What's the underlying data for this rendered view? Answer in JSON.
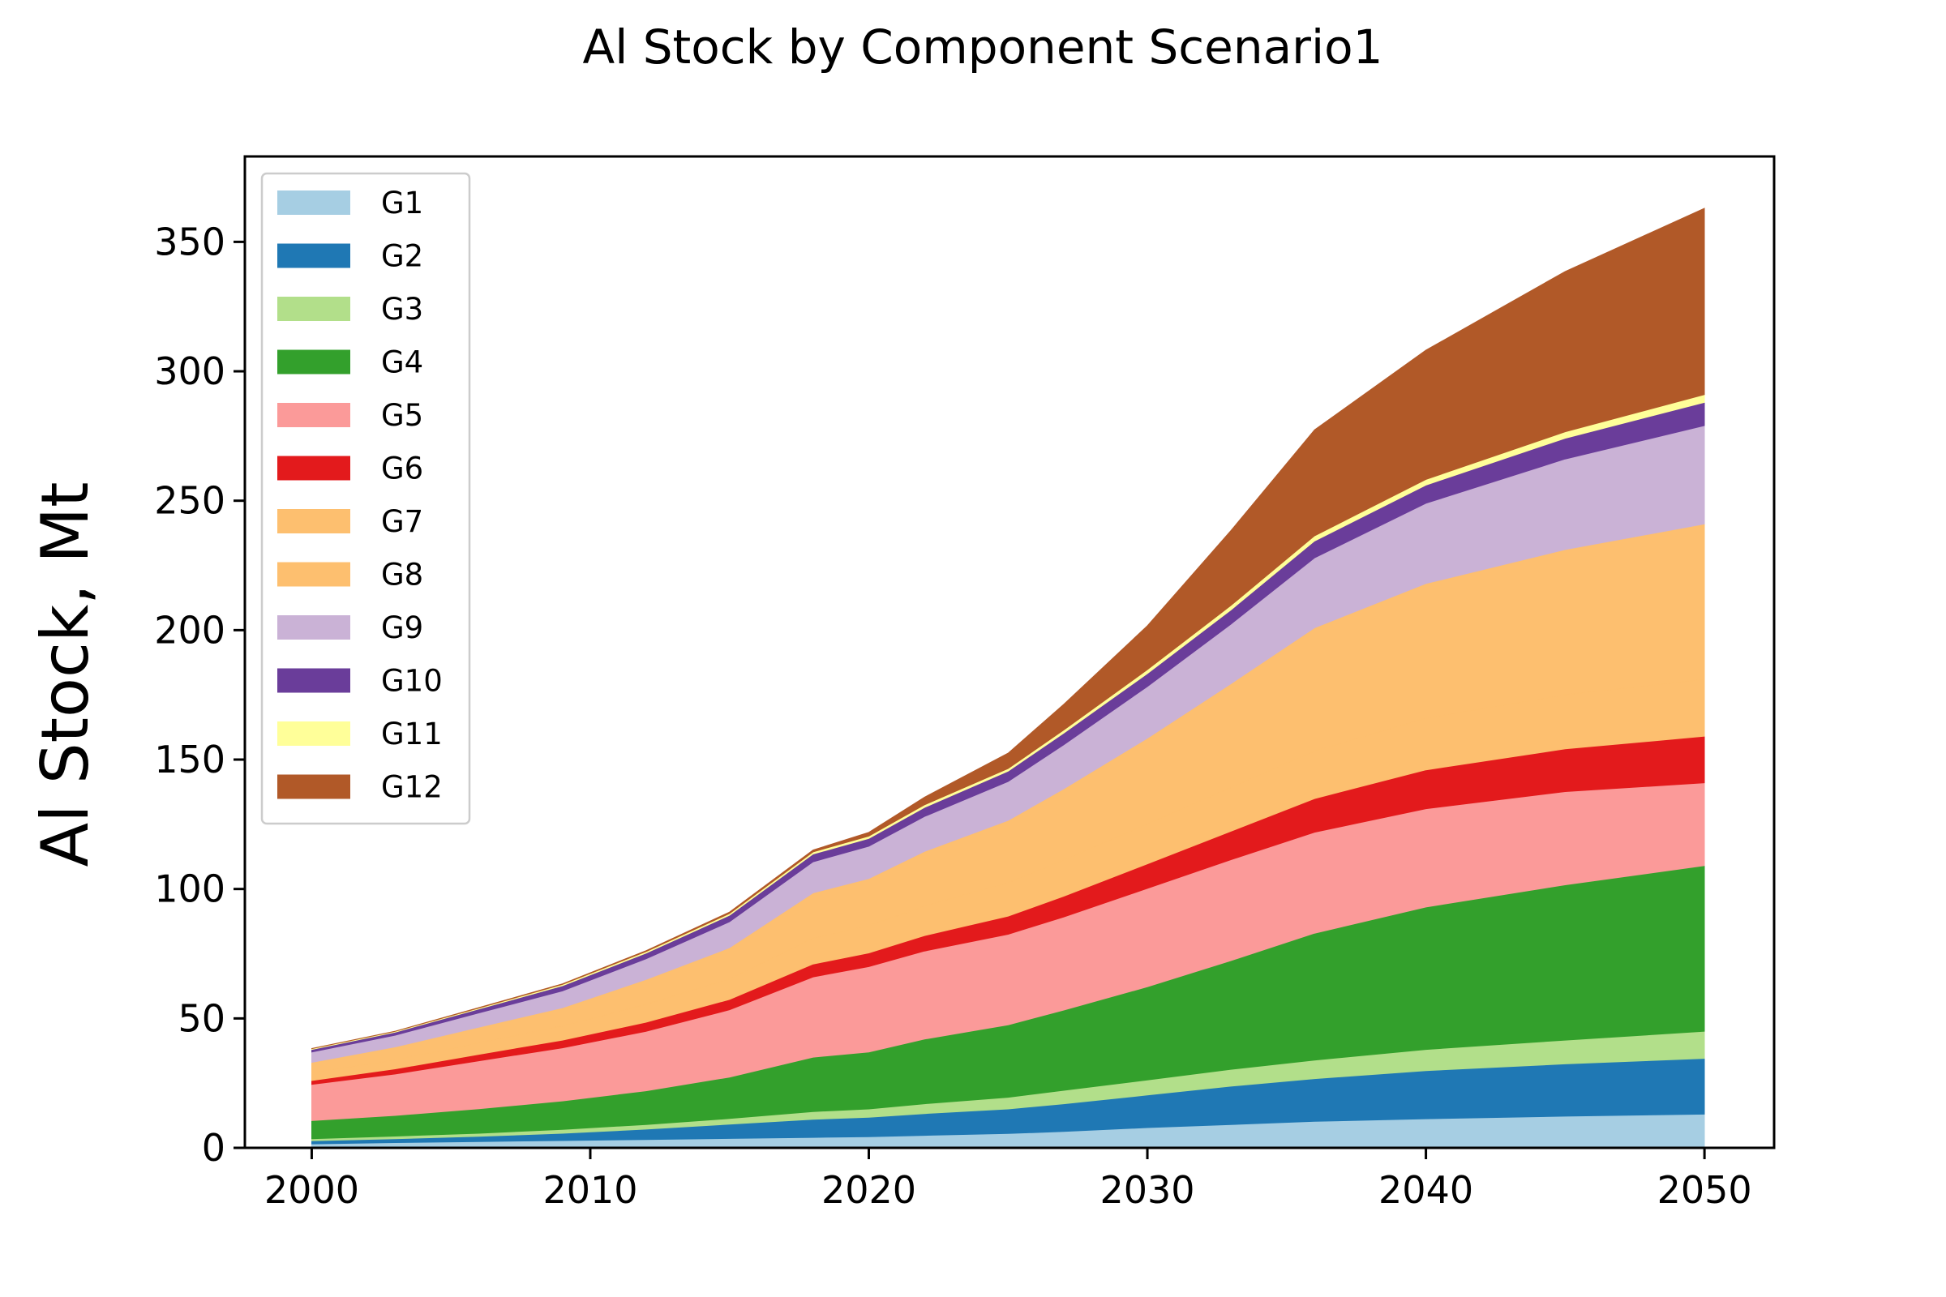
{
  "chart_data": {
    "type": "area",
    "title": "Al Stock by Component Scenario1",
    "xlabel": "",
    "ylabel": "Al Stock, Mt",
    "xlim": [
      1997.6,
      2052.5
    ],
    "ylim": [
      0,
      383
    ],
    "xticks": [
      2000,
      2010,
      2020,
      2030,
      2040,
      2050
    ],
    "yticks": [
      0,
      50,
      100,
      150,
      200,
      250,
      300,
      350
    ],
    "legend_position": "upper-left",
    "grid": false,
    "x": [
      2000,
      2003,
      2006,
      2009,
      2012,
      2015,
      2018,
      2020,
      2022,
      2025,
      2027,
      2030,
      2033,
      2036,
      2040,
      2045,
      2050
    ],
    "series": [
      {
        "name": "G1",
        "color": "#a6cee3",
        "values": [
          1.5,
          2,
          2.4,
          2.8,
          3.2,
          3.6,
          4.0,
          4.3,
          4.8,
          5.5,
          6.3,
          7.8,
          9.0,
          10.2,
          11.2,
          12.2,
          13.0
        ]
      },
      {
        "name": "G2",
        "color": "#1f78b4",
        "values": [
          1.2,
          1.5,
          2.0,
          2.8,
          4.0,
          5.5,
          7.0,
          7.5,
          8.4,
          9.5,
          10.7,
          12.6,
          14.8,
          16.5,
          18.6,
          20.2,
          21.5
        ]
      },
      {
        "name": "G3",
        "color": "#b2df8a",
        "values": [
          0.8,
          1.0,
          1.2,
          1.5,
          1.8,
          2.2,
          3.0,
          3.2,
          3.8,
          4.5,
          5.2,
          5.8,
          6.5,
          7.2,
          8.2,
          9.2,
          10.5
        ]
      },
      {
        "name": "G4",
        "color": "#33a02c",
        "values": [
          7.0,
          8.0,
          9.5,
          11.0,
          13.0,
          16.0,
          21.0,
          22.0,
          25.0,
          28.0,
          31.0,
          36.0,
          42.0,
          49.0,
          55.0,
          60.0,
          64.0
        ]
      },
      {
        "name": "G5",
        "color": "#fb9a99",
        "values": [
          14.0,
          16.0,
          18.5,
          20.5,
          23.0,
          26.0,
          31.0,
          33.0,
          34.0,
          35.0,
          36.0,
          38.0,
          39.0,
          39.0,
          38.0,
          36.0,
          32.0
        ]
      },
      {
        "name": "G6",
        "color": "#e31a1c",
        "values": [
          1.5,
          2.0,
          2.5,
          3.0,
          3.5,
          4.0,
          5.0,
          5.3,
          6.0,
          7.0,
          8.0,
          9.5,
          11.0,
          13.0,
          15.0,
          16.5,
          18.0
        ]
      },
      {
        "name": "G7",
        "color": "#fdbf6f",
        "values": [
          3.0,
          3.5,
          4.5,
          5.5,
          7.0,
          8.0,
          10.0,
          10.5,
          11.5,
          13.0,
          14.0,
          15.5,
          17.0,
          18.5,
          20.0,
          21.0,
          22.0
        ]
      },
      {
        "name": "G8",
        "color": "#fdbf6f",
        "values": [
          4.0,
          5.0,
          6.0,
          7.0,
          9.5,
          12.0,
          17.5,
          18.2,
          21.0,
          24.0,
          27.5,
          33.0,
          40.0,
          47.5,
          52.0,
          56.0,
          60.0
        ]
      },
      {
        "name": "G9",
        "color": "#cab2d6",
        "values": [
          4.0,
          4.5,
          5.5,
          6.5,
          8.0,
          10.0,
          12.0,
          12.5,
          13.5,
          15.0,
          17.0,
          20.0,
          23.0,
          27.0,
          31.0,
          35.0,
          38.0
        ]
      },
      {
        "name": "G10",
        "color": "#6a3d9a",
        "values": [
          1.0,
          1.2,
          1.5,
          2.0,
          2.2,
          2.5,
          3.0,
          3.0,
          3.5,
          4.0,
          4.5,
          5.0,
          5.5,
          6.5,
          7.0,
          8.0,
          9.0
        ]
      },
      {
        "name": "G11",
        "color": "#ffff99",
        "values": [
          0.3,
          0.3,
          0.4,
          0.5,
          0.6,
          0.7,
          0.8,
          0.9,
          1.0,
          1.0,
          1.2,
          1.5,
          1.7,
          2.0,
          2.2,
          2.5,
          3.0
        ]
      },
      {
        "name": "G12",
        "color": "#b15928",
        "values": [
          0.1,
          0.1,
          0.2,
          0.3,
          0.4,
          0.6,
          0.8,
          1.5,
          3.0,
          6.0,
          10.0,
          17.0,
          29.0,
          41.0,
          50.0,
          62.0,
          72.0
        ]
      }
    ]
  }
}
